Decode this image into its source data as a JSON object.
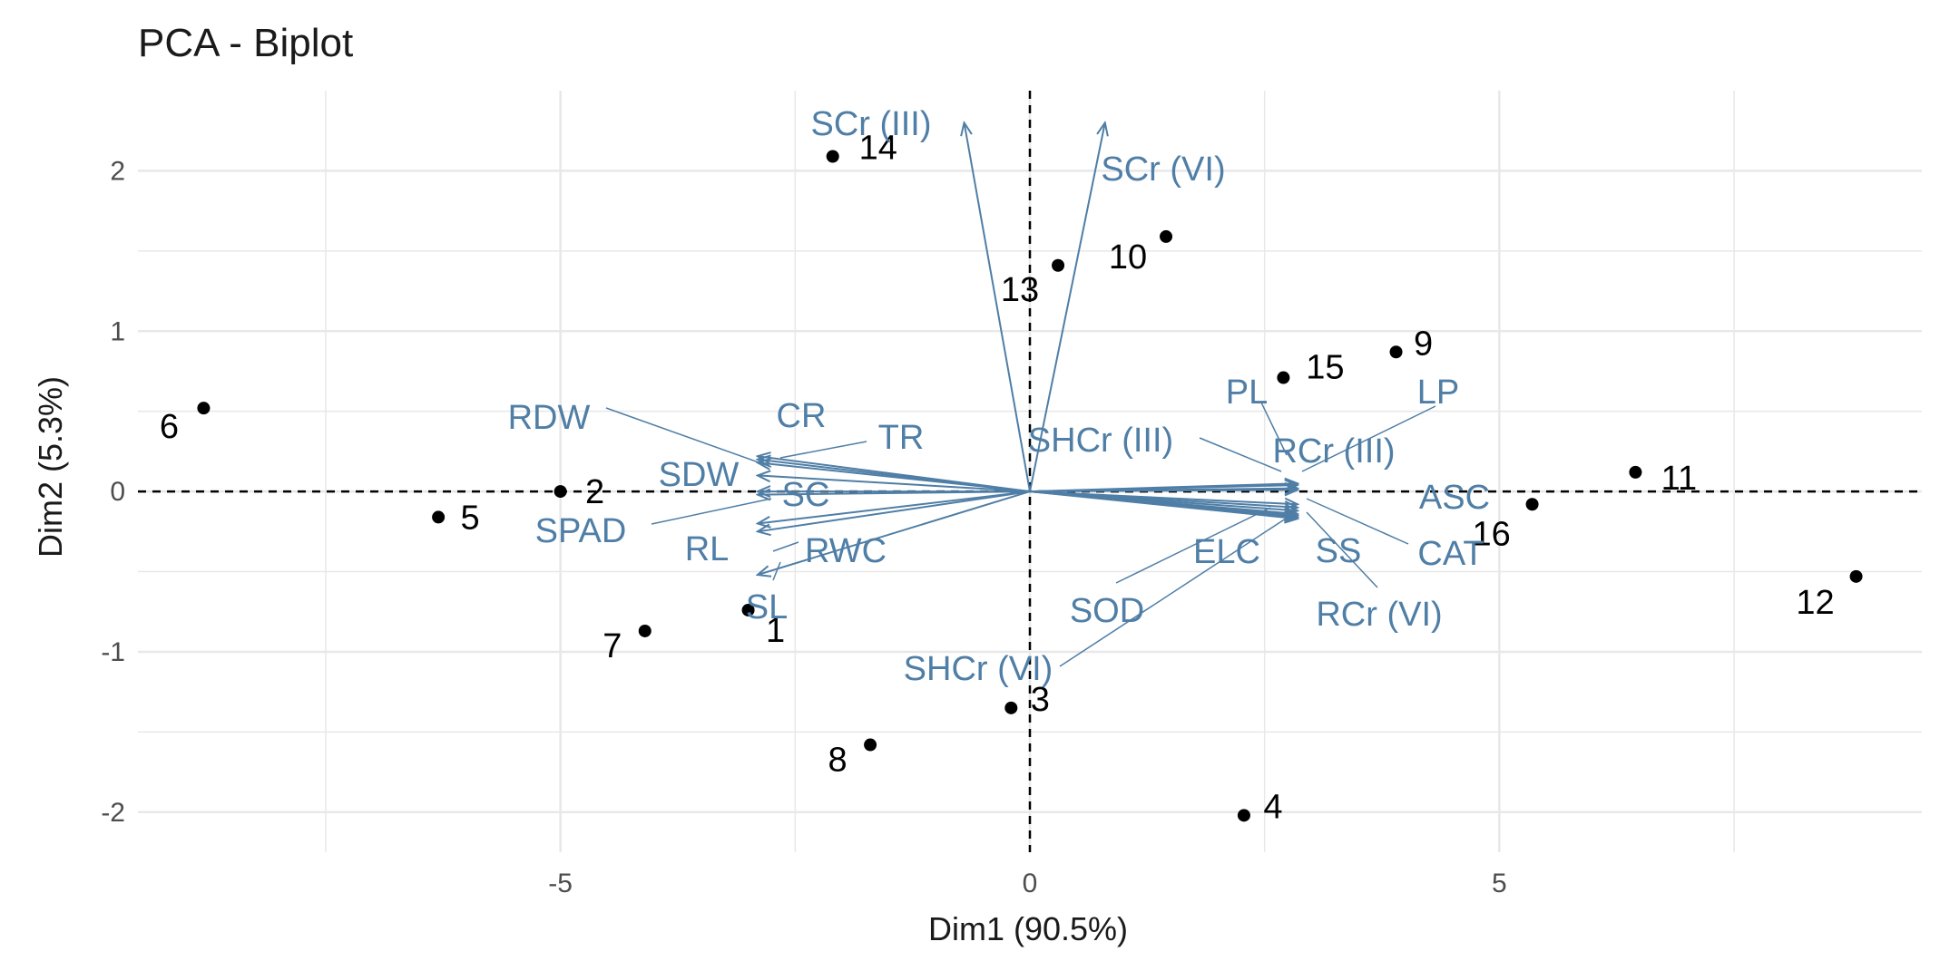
{
  "chart_data": {
    "type": "scatter",
    "subtype": "pca-biplot",
    "title": "PCA - Biplot",
    "xlabel": "Dim1 (90.5%)",
    "ylabel": "Dim2 (5.3%)",
    "xlim": [
      -9.5,
      9.5
    ],
    "ylim": [
      -2.25,
      2.5
    ],
    "xticks": [
      -5,
      0,
      5
    ],
    "yticks": [
      -2,
      -1,
      0,
      1,
      2
    ],
    "xtick_labels": [
      "-5",
      "0",
      "5"
    ],
    "ytick_labels": [
      "-2",
      "-1",
      "0",
      "1",
      "2"
    ],
    "grid": true,
    "legend": "none",
    "colors": {
      "points": "#000000",
      "variables": "#4f7ea6",
      "grid": "#e8e8e8",
      "reference": "#000000"
    },
    "individuals": [
      {
        "label": "1",
        "x": -3.0,
        "y": -0.74
      },
      {
        "label": "2",
        "x": -5.0,
        "y": 0.0
      },
      {
        "label": "3",
        "x": -0.2,
        "y": -1.35
      },
      {
        "label": "4",
        "x": 2.28,
        "y": -2.02
      },
      {
        "label": "5",
        "x": -6.3,
        "y": -0.16
      },
      {
        "label": "6",
        "x": -8.8,
        "y": 0.52
      },
      {
        "label": "7",
        "x": -4.1,
        "y": -0.87
      },
      {
        "label": "8",
        "x": -1.7,
        "y": -1.58
      },
      {
        "label": "9",
        "x": 3.9,
        "y": 0.87
      },
      {
        "label": "10",
        "x": 1.45,
        "y": 1.59
      },
      {
        "label": "11",
        "x": 6.45,
        "y": 0.12
      },
      {
        "label": "12",
        "x": 8.8,
        "y": -0.53
      },
      {
        "label": "13",
        "x": 0.3,
        "y": 1.41
      },
      {
        "label": "14",
        "x": -2.1,
        "y": 2.09
      },
      {
        "label": "15",
        "x": 2.7,
        "y": 0.71
      },
      {
        "label": "16",
        "x": 5.35,
        "y": -0.08
      }
    ],
    "variables": [
      {
        "label": "SCr (III)",
        "x": -0.7,
        "y": 2.3
      },
      {
        "label": "SCr (VI)",
        "x": 0.8,
        "y": 2.3
      },
      {
        "label": "RDW",
        "x": -2.9,
        "y": 0.2
      },
      {
        "label": "CR",
        "x": -2.9,
        "y": 0.22
      },
      {
        "label": "TR",
        "x": -2.9,
        "y": 0.18
      },
      {
        "label": "SDW",
        "x": -2.9,
        "y": 0.1
      },
      {
        "label": "SC",
        "x": -2.9,
        "y": 0.0
      },
      {
        "label": "SPAD",
        "x": -2.9,
        "y": -0.02
      },
      {
        "label": "RL",
        "x": -2.9,
        "y": -0.2
      },
      {
        "label": "RWC",
        "x": -2.9,
        "y": -0.25
      },
      {
        "label": "SL",
        "x": -2.9,
        "y": -0.52
      },
      {
        "label": "PL",
        "x": 2.85,
        "y": 0.05
      },
      {
        "label": "LP",
        "x": 2.85,
        "y": 0.02
      },
      {
        "label": "SHCr (III)",
        "x": 2.85,
        "y": 0.04
      },
      {
        "label": "RCr (III)",
        "x": 2.85,
        "y": 0.01
      },
      {
        "label": "ASC",
        "x": 2.85,
        "y": -0.08
      },
      {
        "label": "CAT",
        "x": 2.85,
        "y": -0.1
      },
      {
        "label": "SS",
        "x": 2.85,
        "y": -0.12
      },
      {
        "label": "ELC",
        "x": 2.85,
        "y": -0.14
      },
      {
        "label": "SOD",
        "x": 2.85,
        "y": -0.15
      },
      {
        "label": "RCr (VI)",
        "x": 2.85,
        "y": -0.16
      },
      {
        "label": "SHCr (VI)",
        "x": 2.85,
        "y": -0.17
      }
    ]
  }
}
